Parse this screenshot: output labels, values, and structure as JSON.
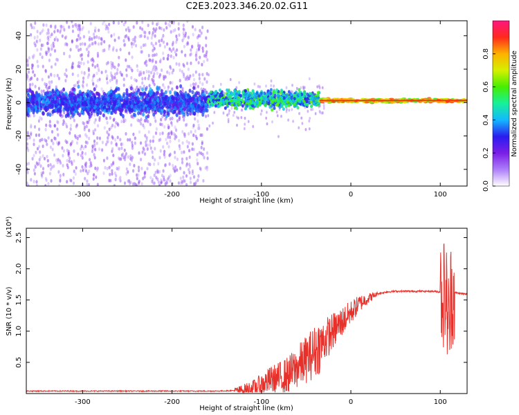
{
  "page_title": "C2E3.2023.346.20.02.G11",
  "chart_data": [
    {
      "type": "heatmap",
      "title": "",
      "xlabel": "Height of straight line (km)",
      "ylabel": "Frequency (Hz)",
      "xlim": [
        -363,
        130
      ],
      "ylim": [
        -50,
        49
      ],
      "x_ticks": [
        -300,
        -200,
        -100,
        0,
        100
      ],
      "x_tick_labels": [
        "-300",
        "-200",
        "-100",
        "0",
        "100"
      ],
      "y_ticks": [
        -40,
        -20,
        0,
        20,
        40
      ],
      "y_tick_labels": [
        "-40",
        "-20",
        "0",
        "20",
        "40"
      ],
      "colorbar": {
        "label": "Normalized spectral amplitude",
        "range": [
          0.0,
          1.0
        ],
        "ticks": [
          0.0,
          0.2,
          0.4,
          0.6,
          0.8
        ],
        "tick_labels": [
          "0.0",
          "0.2",
          "0.4",
          "0.6",
          "0.8"
        ],
        "colormap": [
          "#ffffff",
          "#ad7ef9",
          "#7a1ee6",
          "#2a1cf0",
          "#14b8ff",
          "#16f09a",
          "#46ee00",
          "#d5f000",
          "#ffb100",
          "#ff2a1c",
          "#ff1680"
        ]
      },
      "regions": [
        {
          "x_range": [
            -363,
            -160
          ],
          "description_value": 0.3
        },
        {
          "x_range": [
            -160,
            -35
          ],
          "description_value": 0.45
        },
        {
          "x_range": [
            -35,
            130
          ],
          "description_value": 0.85
        }
      ],
      "grid": false
    },
    {
      "type": "line",
      "title": "",
      "xlabel": "Height of straight line (km)",
      "ylabel": "SNR (10 * v/v)",
      "y_multiplier": "(x10⁴)",
      "xlim": [
        -363,
        130
      ],
      "ylim": [
        0.0,
        2.65
      ],
      "x_ticks": [
        -300,
        -200,
        -100,
        0,
        100
      ],
      "x_tick_labels": [
        "-300",
        "-200",
        "-100",
        "0",
        "100"
      ],
      "y_ticks": [
        0.5,
        1.0,
        1.5,
        2.0,
        2.5
      ],
      "y_tick_labels": [
        "0.5",
        "1.0",
        "1.5",
        "2.0",
        "2.5"
      ],
      "color": "#e8302a",
      "grid": false,
      "series": [
        {
          "x": [
            -363,
            -300,
            -250,
            -200,
            -150,
            -125,
            -110,
            -100,
            -90,
            -80,
            -70,
            -60,
            -50,
            -40,
            -30,
            -20,
            -10,
            0,
            10,
            20,
            30,
            40,
            50,
            60,
            70,
            80,
            90,
            100,
            105,
            108,
            110,
            112,
            115,
            120,
            130
          ],
          "y": [
            0.04,
            0.04,
            0.04,
            0.04,
            0.04,
            0.05,
            0.08,
            0.14,
            0.22,
            0.25,
            0.3,
            0.42,
            0.55,
            0.68,
            0.85,
            1.0,
            1.15,
            1.3,
            1.45,
            1.53,
            1.6,
            1.63,
            1.64,
            1.64,
            1.64,
            1.64,
            1.64,
            1.63,
            1.62,
            1.4,
            1.0,
            1.6,
            1.62,
            1.61,
            1.59
          ]
        }
      ]
    }
  ]
}
